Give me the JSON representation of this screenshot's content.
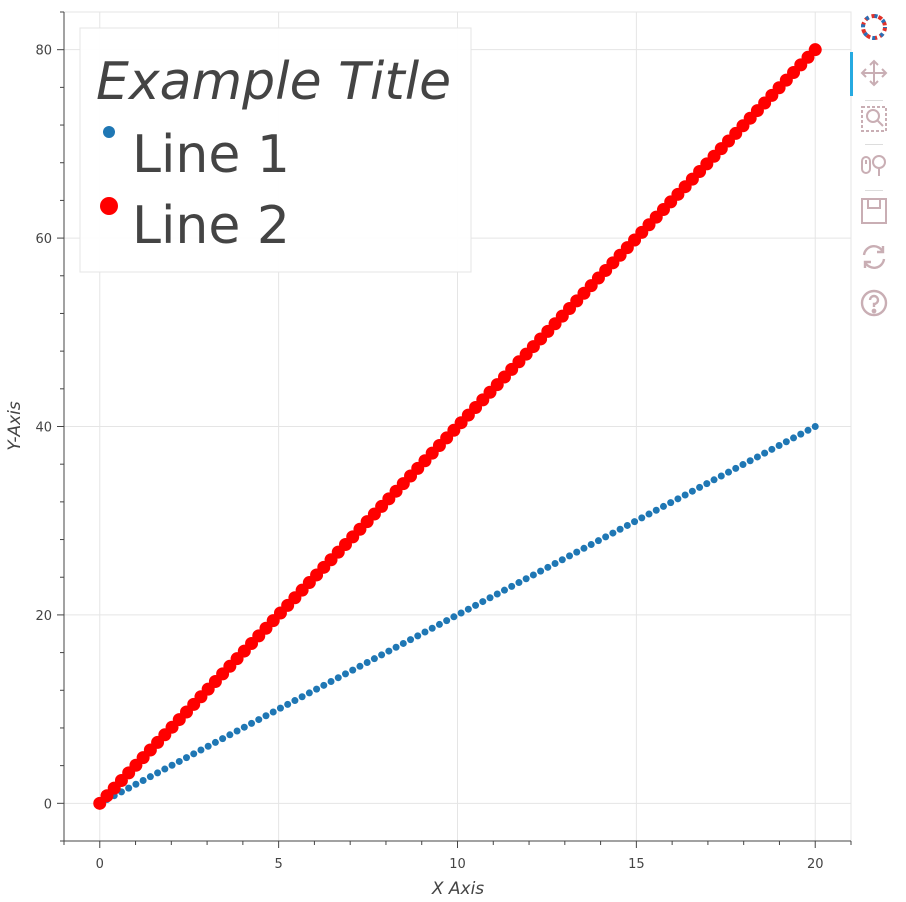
{
  "chart_data": {
    "type": "scatter",
    "xlabel": "X Axis",
    "ylabel": "Y-Axis",
    "xlim": [
      -1,
      21
    ],
    "ylim": [
      -4,
      84
    ],
    "x_ticks": [
      0,
      5,
      10,
      15,
      20
    ],
    "y_ticks": [
      0,
      20,
      40,
      60,
      80
    ],
    "grid": true,
    "legend": {
      "title": "Example Title",
      "placement": "top-left"
    },
    "series": [
      {
        "name": "Line 1",
        "color": "#1f77b4",
        "x_start": 0,
        "x_end": 20,
        "points": 100,
        "slope": 2,
        "marker_size": "small"
      },
      {
        "name": "Line 2",
        "color": "#ff0000",
        "x_start": 0,
        "x_end": 20,
        "points": 100,
        "slope": 4,
        "marker_size": "large"
      }
    ]
  },
  "toolbar": {
    "tools": [
      {
        "name": "bokeh-logo-icon",
        "active": false
      },
      {
        "name": "pan-icon",
        "active": true
      },
      {
        "name": "box-zoom-icon",
        "active": false
      },
      {
        "name": "wheel-zoom-icon",
        "active": false
      },
      {
        "name": "save-icon",
        "active": false
      },
      {
        "name": "reset-icon",
        "active": false
      },
      {
        "name": "help-icon",
        "active": false
      }
    ]
  }
}
